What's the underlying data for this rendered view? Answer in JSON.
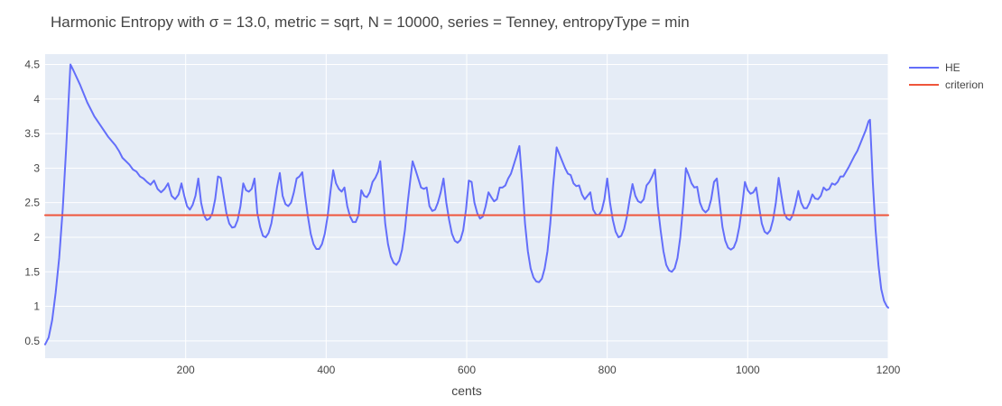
{
  "chart_data": {
    "type": "line",
    "title": "Harmonic Entropy with σ = 13.0, metric = sqrt, N = 10000, series = Tenney, entropyType = min",
    "xlabel": "cents",
    "ylabel": "",
    "xlim": [
      0,
      1200
    ],
    "ylim": [
      0.25,
      4.65
    ],
    "xticks": [
      200,
      400,
      600,
      800,
      1000,
      1200
    ],
    "xtick_labels": [
      "200",
      "400",
      "600",
      "800",
      "1000",
      "1200"
    ],
    "yticks": [
      0.5,
      1,
      1.5,
      2,
      2.5,
      3,
      3.5,
      4,
      4.5
    ],
    "ytick_labels": [
      "0.5",
      "1",
      "1.5",
      "2",
      "2.5",
      "3",
      "3.5",
      "4",
      "4.5"
    ],
    "grid": true,
    "legend": "top-right",
    "series": [
      {
        "name": "HE",
        "color": "#636efa",
        "points": [
          [
            0,
            0.45
          ],
          [
            5,
            0.55
          ],
          [
            10,
            0.8
          ],
          [
            15,
            1.2
          ],
          [
            20,
            1.7
          ],
          [
            25,
            2.4
          ],
          [
            30,
            3.3
          ],
          [
            34,
            4.1
          ],
          [
            36,
            4.5
          ],
          [
            40,
            4.42
          ],
          [
            50,
            4.2
          ],
          [
            60,
            3.95
          ],
          [
            70,
            3.75
          ],
          [
            80,
            3.6
          ],
          [
            90,
            3.45
          ],
          [
            100,
            3.33
          ],
          [
            105,
            3.25
          ],
          [
            110,
            3.15
          ],
          [
            115,
            3.1
          ],
          [
            120,
            3.05
          ],
          [
            125,
            2.98
          ],
          [
            130,
            2.95
          ],
          [
            135,
            2.88
          ],
          [
            140,
            2.85
          ],
          [
            145,
            2.8
          ],
          [
            150,
            2.76
          ],
          [
            155,
            2.82
          ],
          [
            160,
            2.7
          ],
          [
            165,
            2.65
          ],
          [
            170,
            2.7
          ],
          [
            175,
            2.78
          ],
          [
            180,
            2.6
          ],
          [
            185,
            2.55
          ],
          [
            190,
            2.62
          ],
          [
            194,
            2.78
          ],
          [
            198,
            2.6
          ],
          [
            202,
            2.45
          ],
          [
            206,
            2.4
          ],
          [
            210,
            2.47
          ],
          [
            214,
            2.6
          ],
          [
            218,
            2.85
          ],
          [
            222,
            2.5
          ],
          [
            226,
            2.32
          ],
          [
            230,
            2.25
          ],
          [
            234,
            2.27
          ],
          [
            238,
            2.35
          ],
          [
            242,
            2.55
          ],
          [
            246,
            2.88
          ],
          [
            250,
            2.86
          ],
          [
            254,
            2.6
          ],
          [
            258,
            2.35
          ],
          [
            262,
            2.2
          ],
          [
            266,
            2.14
          ],
          [
            270,
            2.15
          ],
          [
            274,
            2.25
          ],
          [
            278,
            2.45
          ],
          [
            282,
            2.78
          ],
          [
            286,
            2.68
          ],
          [
            290,
            2.66
          ],
          [
            294,
            2.7
          ],
          [
            298,
            2.85
          ],
          [
            302,
            2.35
          ],
          [
            306,
            2.15
          ],
          [
            310,
            2.02
          ],
          [
            314,
            2.0
          ],
          [
            318,
            2.06
          ],
          [
            322,
            2.2
          ],
          [
            326,
            2.45
          ],
          [
            330,
            2.72
          ],
          [
            334,
            2.93
          ],
          [
            338,
            2.6
          ],
          [
            342,
            2.48
          ],
          [
            346,
            2.45
          ],
          [
            350,
            2.5
          ],
          [
            354,
            2.65
          ],
          [
            358,
            2.85
          ],
          [
            362,
            2.88
          ],
          [
            366,
            2.94
          ],
          [
            370,
            2.6
          ],
          [
            374,
            2.3
          ],
          [
            378,
            2.05
          ],
          [
            382,
            1.9
          ],
          [
            386,
            1.83
          ],
          [
            390,
            1.83
          ],
          [
            394,
            1.9
          ],
          [
            398,
            2.05
          ],
          [
            402,
            2.3
          ],
          [
            406,
            2.65
          ],
          [
            410,
            2.97
          ],
          [
            414,
            2.78
          ],
          [
            418,
            2.7
          ],
          [
            422,
            2.66
          ],
          [
            426,
            2.72
          ],
          [
            430,
            2.45
          ],
          [
            434,
            2.3
          ],
          [
            438,
            2.22
          ],
          [
            442,
            2.22
          ],
          [
            446,
            2.32
          ],
          [
            450,
            2.68
          ],
          [
            454,
            2.6
          ],
          [
            458,
            2.58
          ],
          [
            462,
            2.65
          ],
          [
            466,
            2.8
          ],
          [
            470,
            2.86
          ],
          [
            474,
            2.95
          ],
          [
            477,
            3.1
          ],
          [
            481,
            2.6
          ],
          [
            484,
            2.2
          ],
          [
            488,
            1.9
          ],
          [
            492,
            1.72
          ],
          [
            496,
            1.63
          ],
          [
            500,
            1.6
          ],
          [
            504,
            1.66
          ],
          [
            508,
            1.82
          ],
          [
            512,
            2.1
          ],
          [
            516,
            2.5
          ],
          [
            520,
            2.85
          ],
          [
            523,
            3.1
          ],
          [
            527,
            2.98
          ],
          [
            531,
            2.85
          ],
          [
            535,
            2.72
          ],
          [
            539,
            2.7
          ],
          [
            543,
            2.72
          ],
          [
            547,
            2.45
          ],
          [
            551,
            2.38
          ],
          [
            555,
            2.4
          ],
          [
            559,
            2.5
          ],
          [
            563,
            2.65
          ],
          [
            567,
            2.85
          ],
          [
            571,
            2.5
          ],
          [
            575,
            2.25
          ],
          [
            579,
            2.05
          ],
          [
            583,
            1.95
          ],
          [
            587,
            1.92
          ],
          [
            591,
            1.96
          ],
          [
            595,
            2.1
          ],
          [
            599,
            2.4
          ],
          [
            603,
            2.82
          ],
          [
            607,
            2.8
          ],
          [
            611,
            2.5
          ],
          [
            615,
            2.35
          ],
          [
            619,
            2.27
          ],
          [
            623,
            2.3
          ],
          [
            627,
            2.45
          ],
          [
            631,
            2.65
          ],
          [
            635,
            2.58
          ],
          [
            639,
            2.52
          ],
          [
            643,
            2.55
          ],
          [
            647,
            2.72
          ],
          [
            651,
            2.72
          ],
          [
            655,
            2.75
          ],
          [
            659,
            2.85
          ],
          [
            663,
            2.92
          ],
          [
            667,
            3.05
          ],
          [
            671,
            3.18
          ],
          [
            675,
            3.32
          ],
          [
            679,
            2.8
          ],
          [
            683,
            2.2
          ],
          [
            687,
            1.8
          ],
          [
            691,
            1.55
          ],
          [
            695,
            1.42
          ],
          [
            699,
            1.36
          ],
          [
            703,
            1.35
          ],
          [
            707,
            1.4
          ],
          [
            711,
            1.55
          ],
          [
            715,
            1.8
          ],
          [
            719,
            2.2
          ],
          [
            723,
            2.75
          ],
          [
            728,
            3.3
          ],
          [
            732,
            3.2
          ],
          [
            736,
            3.1
          ],
          [
            740,
            3.0
          ],
          [
            744,
            2.92
          ],
          [
            748,
            2.9
          ],
          [
            752,
            2.78
          ],
          [
            756,
            2.74
          ],
          [
            760,
            2.75
          ],
          [
            764,
            2.62
          ],
          [
            768,
            2.55
          ],
          [
            772,
            2.6
          ],
          [
            776,
            2.65
          ],
          [
            780,
            2.4
          ],
          [
            784,
            2.33
          ],
          [
            788,
            2.32
          ],
          [
            792,
            2.38
          ],
          [
            796,
            2.55
          ],
          [
            800,
            2.85
          ],
          [
            804,
            2.5
          ],
          [
            808,
            2.25
          ],
          [
            812,
            2.08
          ],
          [
            816,
            2.0
          ],
          [
            820,
            2.02
          ],
          [
            824,
            2.12
          ],
          [
            828,
            2.3
          ],
          [
            832,
            2.55
          ],
          [
            836,
            2.77
          ],
          [
            840,
            2.6
          ],
          [
            844,
            2.52
          ],
          [
            848,
            2.5
          ],
          [
            852,
            2.55
          ],
          [
            856,
            2.75
          ],
          [
            860,
            2.8
          ],
          [
            864,
            2.88
          ],
          [
            868,
            2.98
          ],
          [
            872,
            2.45
          ],
          [
            876,
            2.1
          ],
          [
            880,
            1.8
          ],
          [
            884,
            1.6
          ],
          [
            888,
            1.52
          ],
          [
            892,
            1.5
          ],
          [
            896,
            1.55
          ],
          [
            900,
            1.7
          ],
          [
            904,
            2.0
          ],
          [
            908,
            2.45
          ],
          [
            912,
            3.0
          ],
          [
            916,
            2.9
          ],
          [
            920,
            2.78
          ],
          [
            924,
            2.72
          ],
          [
            928,
            2.73
          ],
          [
            932,
            2.5
          ],
          [
            936,
            2.4
          ],
          [
            940,
            2.36
          ],
          [
            944,
            2.4
          ],
          [
            948,
            2.55
          ],
          [
            952,
            2.8
          ],
          [
            956,
            2.85
          ],
          [
            960,
            2.5
          ],
          [
            964,
            2.15
          ],
          [
            968,
            1.95
          ],
          [
            972,
            1.85
          ],
          [
            976,
            1.82
          ],
          [
            980,
            1.85
          ],
          [
            984,
            1.95
          ],
          [
            988,
            2.15
          ],
          [
            992,
            2.45
          ],
          [
            996,
            2.8
          ],
          [
            1000,
            2.68
          ],
          [
            1004,
            2.63
          ],
          [
            1008,
            2.65
          ],
          [
            1012,
            2.72
          ],
          [
            1016,
            2.45
          ],
          [
            1020,
            2.2
          ],
          [
            1024,
            2.08
          ],
          [
            1028,
            2.05
          ],
          [
            1032,
            2.1
          ],
          [
            1036,
            2.25
          ],
          [
            1040,
            2.5
          ],
          [
            1044,
            2.86
          ],
          [
            1048,
            2.6
          ],
          [
            1052,
            2.35
          ],
          [
            1056,
            2.27
          ],
          [
            1060,
            2.25
          ],
          [
            1064,
            2.32
          ],
          [
            1068,
            2.48
          ],
          [
            1072,
            2.67
          ],
          [
            1076,
            2.5
          ],
          [
            1080,
            2.42
          ],
          [
            1084,
            2.42
          ],
          [
            1088,
            2.5
          ],
          [
            1092,
            2.62
          ],
          [
            1096,
            2.56
          ],
          [
            1100,
            2.55
          ],
          [
            1104,
            2.6
          ],
          [
            1108,
            2.72
          ],
          [
            1112,
            2.68
          ],
          [
            1116,
            2.7
          ],
          [
            1120,
            2.78
          ],
          [
            1124,
            2.76
          ],
          [
            1128,
            2.8
          ],
          [
            1132,
            2.88
          ],
          [
            1136,
            2.88
          ],
          [
            1140,
            2.95
          ],
          [
            1144,
            3.02
          ],
          [
            1148,
            3.1
          ],
          [
            1152,
            3.18
          ],
          [
            1156,
            3.25
          ],
          [
            1160,
            3.35
          ],
          [
            1164,
            3.45
          ],
          [
            1168,
            3.55
          ],
          [
            1172,
            3.68
          ],
          [
            1174,
            3.7
          ],
          [
            1178,
            2.8
          ],
          [
            1182,
            2.1
          ],
          [
            1186,
            1.6
          ],
          [
            1190,
            1.25
          ],
          [
            1194,
            1.08
          ],
          [
            1198,
            1.0
          ],
          [
            1200,
            0.98
          ]
        ]
      },
      {
        "name": "criterion",
        "color": "#ef553b",
        "points": [
          [
            0,
            2.32
          ],
          [
            1200,
            2.32
          ]
        ]
      }
    ]
  }
}
